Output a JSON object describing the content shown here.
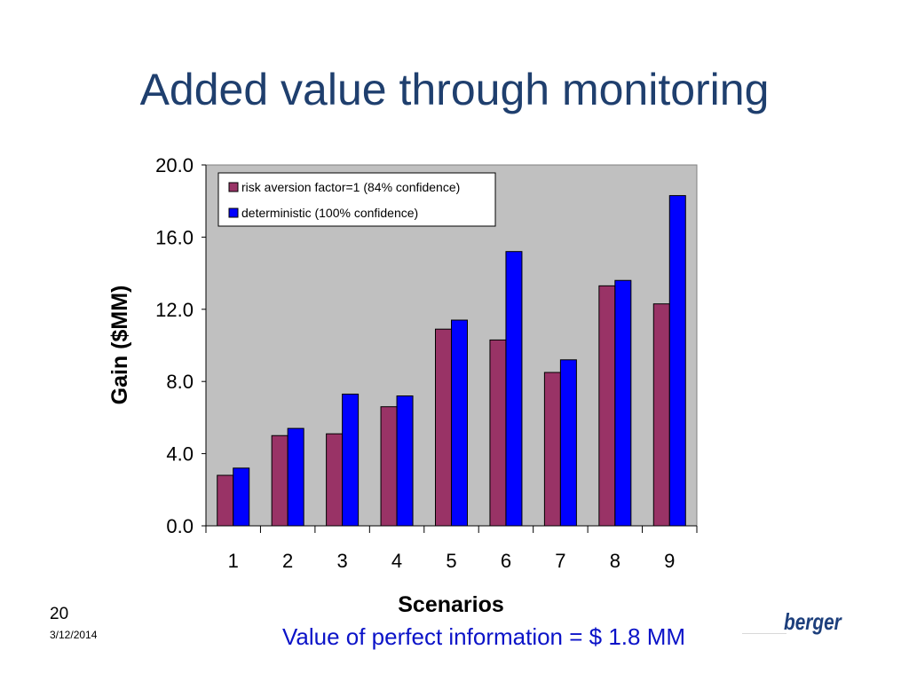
{
  "slide": {
    "title": "Added value through monitoring",
    "number": "20",
    "date": "3/12/2014",
    "footer": "Value of perfect information = $ 1.8 MM",
    "logo": "berger"
  },
  "chart_data": {
    "type": "bar",
    "categories": [
      "1",
      "2",
      "3",
      "4",
      "5",
      "6",
      "7",
      "8",
      "9"
    ],
    "series": [
      {
        "name": "risk aversion factor=1 (84% confidence)",
        "values": [
          2.8,
          5.0,
          5.1,
          6.6,
          10.9,
          10.3,
          8.5,
          13.3,
          12.3
        ],
        "color": "#993366"
      },
      {
        "name": "deterministic (100% confidence)",
        "values": [
          3.2,
          5.4,
          7.3,
          7.2,
          11.4,
          15.2,
          9.2,
          13.6,
          18.3
        ],
        "color": "#0000ff"
      }
    ],
    "xlabel": "Scenarios",
    "ylabel": "Gain ($MM)",
    "ylim": [
      0,
      20
    ],
    "yticks": [
      "0.0",
      "4.0",
      "8.0",
      "12.0",
      "16.0",
      "20.0"
    ],
    "plot_background": "#c0c0c0",
    "grid": false,
    "legend": "top-left"
  }
}
